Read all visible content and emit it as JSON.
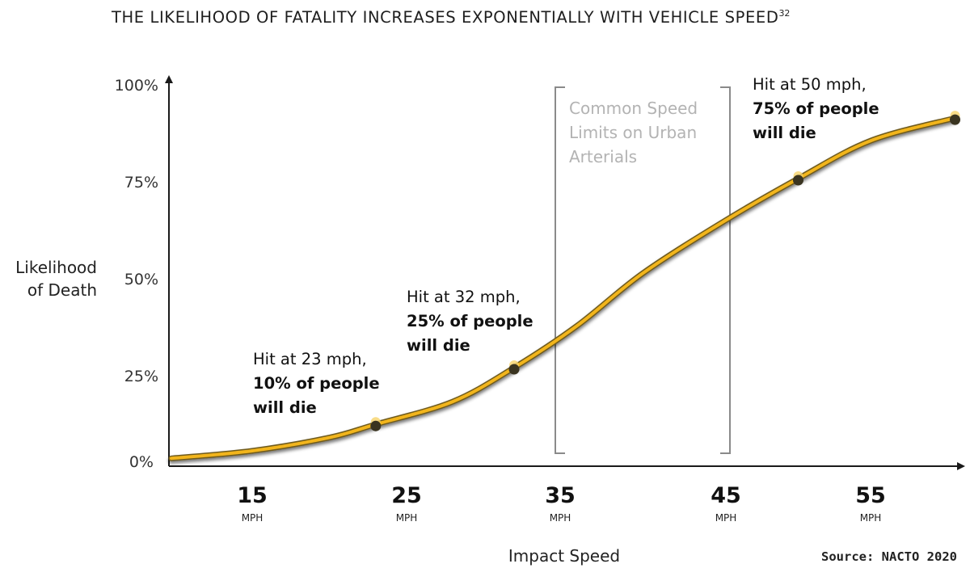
{
  "header": {
    "title": "THE LIKELIHOOD OF FATALITY INCREASES EXPONENTIALLY WITH VEHICLE SPEED",
    "title_sup": "32"
  },
  "chart_data": {
    "type": "line",
    "title": "THE LIKELIHOOD OF FATALITY INCREASES EXPONENTIALLY WITH VEHICLE SPEED",
    "xlabel": "Impact Speed",
    "ylabel": [
      "Likelihood",
      "of Death"
    ],
    "xlim": [
      10,
      61
    ],
    "ylim": [
      0,
      100
    ],
    "x_ticks": [
      {
        "value": 15,
        "label": "15",
        "unit": "MPH"
      },
      {
        "value": 25,
        "label": "25",
        "unit": "MPH"
      },
      {
        "value": 35,
        "label": "35",
        "unit": "MPH"
      },
      {
        "value": 45,
        "label": "45",
        "unit": "MPH"
      },
      {
        "value": 55,
        "label": "55",
        "unit": "MPH"
      }
    ],
    "y_ticks": [
      {
        "value": 0,
        "label": "0%"
      },
      {
        "value": 25,
        "label": "25%"
      },
      {
        "value": 50,
        "label": "50%"
      },
      {
        "value": 75,
        "label": "75%"
      },
      {
        "value": 100,
        "label": "100%"
      }
    ],
    "curve": {
      "color": "#f2b51c",
      "x": [
        10,
        15,
        20,
        23,
        28,
        32,
        36,
        40,
        45,
        50,
        55,
        60.5
      ],
      "y": [
        1,
        3,
        6.5,
        10,
        16,
        25,
        36,
        50,
        64,
        75,
        85,
        91
      ]
    },
    "markers": [
      {
        "x": 23,
        "y": 10
      },
      {
        "x": 32,
        "y": 25
      },
      {
        "x": 50,
        "y": 75
      },
      {
        "x": 60.5,
        "y": 91
      }
    ],
    "annotations": [
      {
        "lines": [
          "Hit at 23 mph,",
          "10% of people",
          "will die"
        ]
      },
      {
        "lines": [
          "Hit at 32 mph,",
          "25% of people",
          "will die"
        ]
      },
      {
        "lines": [
          "Hit at 50 mph,",
          "75% of people",
          "will die"
        ]
      }
    ],
    "speed_zone": {
      "x_range": [
        35,
        45
      ],
      "lines": [
        "Common Speed",
        "Limits on Urban",
        "Arterials"
      ]
    },
    "grid": false
  },
  "source": "Source: NACTO 2020"
}
